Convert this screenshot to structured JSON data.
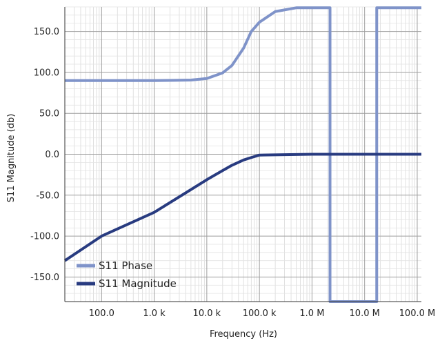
{
  "chart_data": {
    "type": "line",
    "title": "",
    "xlabel": "Frequency (Hz)",
    "ylabel": "S11 Magnitude (db)",
    "x_scale": "log",
    "xlim": [
      20,
      120000000
    ],
    "ylim": [
      -180,
      180
    ],
    "grid": true,
    "legend_position": "bottom-left",
    "x_ticks": [
      {
        "value": 100,
        "label": "100.0"
      },
      {
        "value": 1000,
        "label": "1.0 k"
      },
      {
        "value": 10000,
        "label": "10.0 k"
      },
      {
        "value": 100000,
        "label": "100.0 k"
      },
      {
        "value": 1000000,
        "label": "1.0 M"
      },
      {
        "value": 10000000,
        "label": "10.0 M"
      },
      {
        "value": 100000000,
        "label": "100.0 M"
      }
    ],
    "y_ticks": [
      {
        "value": 150,
        "label": "150.0"
      },
      {
        "value": 100,
        "label": "100.0"
      },
      {
        "value": 50,
        "label": "50.0"
      },
      {
        "value": 0,
        "label": "0.0"
      },
      {
        "value": -50,
        "label": "-50.0"
      },
      {
        "value": -100,
        "label": "-100.0"
      },
      {
        "value": -150,
        "label": "-150.0"
      }
    ],
    "series": [
      {
        "name": "S11 Phase",
        "color": "#7f93c9",
        "x": [
          20,
          1000,
          5000,
          10000,
          20000,
          30000,
          50000,
          70000,
          100000,
          200000,
          500000,
          2200000,
          2200000,
          17000000,
          17000000,
          120000000
        ],
        "y": [
          90,
          90,
          90.6,
          92.5,
          99.4,
          108.4,
          129.6,
          149.9,
          161.3,
          174.3,
          178.9,
          179,
          -180,
          -180,
          179,
          179
        ]
      },
      {
        "name": "S11 Magnitude",
        "color": "#283b80",
        "x": [
          20,
          100,
          1000,
          10000,
          20000,
          30000,
          50000,
          70000,
          100000,
          1000000,
          120000000
        ],
        "y": [
          -130,
          -100,
          -71,
          -31.1,
          -19.9,
          -13.5,
          -7,
          -4,
          -1,
          0,
          0
        ]
      }
    ]
  }
}
